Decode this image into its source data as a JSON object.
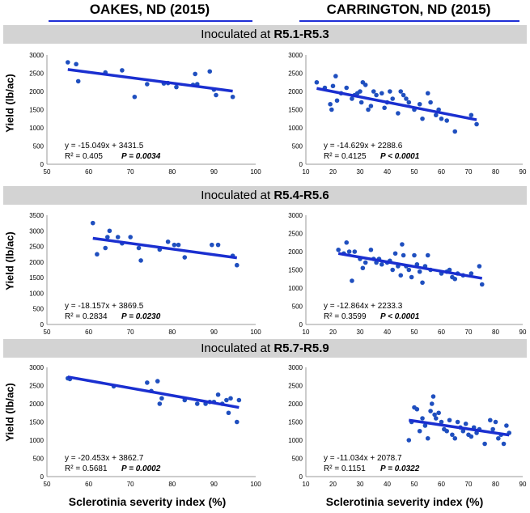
{
  "columns": [
    {
      "title": "OAKES, ND (2015)"
    },
    {
      "title": "CARRINGTON, ND (2015)"
    }
  ],
  "bands": [
    {
      "prefix": "Inoculated at ",
      "stage": "R5.1-R5.3"
    },
    {
      "prefix": "Inoculated at ",
      "stage": "R5.4-R5.6"
    },
    {
      "prefix": "Inoculated at ",
      "stage": "R5.7-R5.9"
    }
  ],
  "ylabel": "Yield (lb/ac)",
  "xlabel": "Sclerotinia severity index (%)",
  "colors": {
    "points": "#1f4fbf",
    "trend": "#1a2fd0",
    "band": "#d3d3d3",
    "underline": "#1f2fd6"
  },
  "chart_data": [
    {
      "type": "scatter",
      "id": "p1",
      "xlim": [
        50,
        100
      ],
      "xticks": [
        50,
        60,
        70,
        80,
        90,
        100
      ],
      "ylim": [
        0,
        3000
      ],
      "yticks": [
        0,
        500,
        1000,
        1500,
        2000,
        2500,
        3000
      ],
      "trend": {
        "slope": -15.049,
        "intercept": 3431.5
      },
      "equation": "y = -15.049x + 3431.5",
      "r2_label": "R² = 0.405",
      "p_label": "P = 0.0034",
      "points": [
        [
          55,
          2800
        ],
        [
          57,
          2750
        ],
        [
          57.5,
          2280
        ],
        [
          64,
          2520
        ],
        [
          68,
          2580
        ],
        [
          71,
          1850
        ],
        [
          74,
          2200
        ],
        [
          78,
          2220
        ],
        [
          79,
          2230
        ],
        [
          81,
          2120
        ],
        [
          85,
          2180
        ],
        [
          85.5,
          2480
        ],
        [
          86,
          2200
        ],
        [
          89,
          2550
        ],
        [
          90,
          2050
        ],
        [
          90.5,
          1900
        ],
        [
          94.5,
          1850
        ]
      ]
    },
    {
      "type": "scatter",
      "id": "p2",
      "xlim": [
        10,
        90
      ],
      "xticks": [
        10,
        20,
        30,
        40,
        50,
        60,
        70,
        80,
        90
      ],
      "ylim": [
        0,
        3000
      ],
      "yticks": [
        0,
        500,
        1000,
        1500,
        2000,
        2500,
        3000
      ],
      "trend": {
        "slope": -14.629,
        "intercept": 2288.6
      },
      "equation": "y = -14.629x + 2288.6",
      "r2_label": "R² = 0.4125",
      "p_label": "P < 0.0001",
      "points": [
        [
          14,
          2250
        ],
        [
          17,
          2100
        ],
        [
          19,
          1650
        ],
        [
          19.5,
          1500
        ],
        [
          20,
          2150
        ],
        [
          21,
          2420
        ],
        [
          21.5,
          1750
        ],
        [
          23,
          1950
        ],
        [
          25,
          2100
        ],
        [
          27,
          1800
        ],
        [
          28,
          1900
        ],
        [
          29,
          1950
        ],
        [
          30,
          2000
        ],
        [
          30.5,
          1700
        ],
        [
          31,
          2250
        ],
        [
          32,
          2180
        ],
        [
          33,
          1500
        ],
        [
          34,
          1600
        ],
        [
          35,
          2000
        ],
        [
          36,
          1900
        ],
        [
          38,
          1950
        ],
        [
          39,
          1550
        ],
        [
          40,
          1700
        ],
        [
          41,
          2000
        ],
        [
          42,
          1800
        ],
        [
          44,
          1400
        ],
        [
          45,
          2000
        ],
        [
          46,
          1900
        ],
        [
          47,
          1800
        ],
        [
          48,
          1700
        ],
        [
          50,
          1500
        ],
        [
          52,
          1650
        ],
        [
          53,
          1250
        ],
        [
          55,
          1950
        ],
        [
          56,
          1700
        ],
        [
          58,
          1350
        ],
        [
          59,
          1500
        ],
        [
          60,
          1250
        ],
        [
          62,
          1200
        ],
        [
          65,
          900
        ],
        [
          71,
          1350
        ],
        [
          73,
          1100
        ]
      ]
    },
    {
      "type": "scatter",
      "id": "p3",
      "xlim": [
        50,
        100
      ],
      "xticks": [
        50,
        60,
        70,
        80,
        90,
        100
      ],
      "ylim": [
        0,
        3500
      ],
      "yticks": [
        0,
        500,
        1000,
        1500,
        2000,
        2500,
        3000,
        3500
      ],
      "trend": {
        "slope": -18.157,
        "intercept": 3869.5
      },
      "equation": "y = -18.157x + 3869.5",
      "r2_label": "R² = 0.2834",
      "p_label": "P = 0.0230",
      "points": [
        [
          61,
          3250
        ],
        [
          62,
          2250
        ],
        [
          64,
          2450
        ],
        [
          64.5,
          2800
        ],
        [
          65,
          3000
        ],
        [
          67,
          2800
        ],
        [
          68,
          2600
        ],
        [
          70,
          2800
        ],
        [
          72,
          2450
        ],
        [
          72.5,
          2050
        ],
        [
          77,
          2400
        ],
        [
          79,
          2650
        ],
        [
          80.5,
          2550
        ],
        [
          81.5,
          2550
        ],
        [
          83,
          2150
        ],
        [
          89.5,
          2550
        ],
        [
          91,
          2550
        ],
        [
          94.5,
          2200
        ],
        [
          95.5,
          1900
        ]
      ]
    },
    {
      "type": "scatter",
      "id": "p4",
      "xlim": [
        10,
        90
      ],
      "xticks": [
        10,
        20,
        30,
        40,
        50,
        60,
        70,
        80,
        90
      ],
      "ylim": [
        0,
        3000
      ],
      "yticks": [
        0,
        500,
        1000,
        1500,
        2000,
        2500,
        3000
      ],
      "trend": {
        "slope": -12.864,
        "intercept": 2233.3
      },
      "equation": "y = -12.864x + 2233.3",
      "r2_label": "R² = 0.3599",
      "p_label": "P < 0.0001",
      "points": [
        [
          22,
          2050
        ],
        [
          24,
          1950
        ],
        [
          25,
          2250
        ],
        [
          26,
          2000
        ],
        [
          27,
          1200
        ],
        [
          28,
          2000
        ],
        [
          30,
          1800
        ],
        [
          31,
          1550
        ],
        [
          32,
          1700
        ],
        [
          34,
          2050
        ],
        [
          35,
          1800
        ],
        [
          36,
          1700
        ],
        [
          37,
          1800
        ],
        [
          38,
          1650
        ],
        [
          40,
          1700
        ],
        [
          41,
          1750
        ],
        [
          42,
          1500
        ],
        [
          43,
          1950
        ],
        [
          44,
          1600
        ],
        [
          45,
          1350
        ],
        [
          45.5,
          2200
        ],
        [
          46,
          1900
        ],
        [
          47,
          1600
        ],
        [
          48,
          1500
        ],
        [
          49,
          1300
        ],
        [
          50,
          1900
        ],
        [
          51,
          1650
        ],
        [
          52,
          1450
        ],
        [
          53,
          1150
        ],
        [
          54,
          1600
        ],
        [
          55,
          1900
        ],
        [
          56,
          1500
        ],
        [
          60,
          1400
        ],
        [
          62,
          1450
        ],
        [
          63,
          1500
        ],
        [
          64,
          1300
        ],
        [
          65,
          1250
        ],
        [
          66,
          1400
        ],
        [
          68,
          1350
        ],
        [
          71,
          1400
        ],
        [
          74,
          1600
        ],
        [
          75,
          1100
        ]
      ]
    },
    {
      "type": "scatter",
      "id": "p5",
      "xlim": [
        50,
        100
      ],
      "xticks": [
        50,
        60,
        70,
        80,
        90,
        100
      ],
      "ylim": [
        0,
        3000
      ],
      "yticks": [
        0,
        500,
        1000,
        1500,
        2000,
        2500,
        3000
      ],
      "trend": {
        "slope": -20.453,
        "intercept": 3862.7
      },
      "equation": "y = -20.453x + 3862.7",
      "r2_label": "R² = 0.5681",
      "p_label": "P = 0.0002",
      "points": [
        [
          55,
          2700
        ],
        [
          55.5,
          2680
        ],
        [
          66,
          2480
        ],
        [
          74,
          2580
        ],
        [
          75,
          2350
        ],
        [
          76.5,
          2620
        ],
        [
          77,
          2000
        ],
        [
          77.5,
          2150
        ],
        [
          83,
          2100
        ],
        [
          86,
          2000
        ],
        [
          88,
          2000
        ],
        [
          89,
          2050
        ],
        [
          90,
          2050
        ],
        [
          91,
          2250
        ],
        [
          92,
          2000
        ],
        [
          93,
          2100
        ],
        [
          93.5,
          1750
        ],
        [
          94,
          2150
        ],
        [
          95.5,
          1500
        ],
        [
          96,
          2100
        ]
      ]
    },
    {
      "type": "scatter",
      "id": "p6",
      "xlim": [
        10,
        90
      ],
      "xticks": [
        10,
        20,
        30,
        40,
        50,
        60,
        70,
        80,
        90
      ],
      "ylim": [
        0,
        3000
      ],
      "yticks": [
        0,
        500,
        1000,
        1500,
        2000,
        2500,
        3000
      ],
      "trend": {
        "slope": -11.034,
        "intercept": 2078.7
      },
      "equation": "y = -11.034x + 2078.7",
      "r2_label": "R² = 0.1151",
      "p_label": "P = 0.0322",
      "points": [
        [
          48,
          1000
        ],
        [
          49,
          1500
        ],
        [
          50,
          1900
        ],
        [
          51,
          1850
        ],
        [
          52,
          1250
        ],
        [
          53,
          1600
        ],
        [
          54,
          1400
        ],
        [
          55,
          1050
        ],
        [
          56,
          1800
        ],
        [
          56.5,
          2000
        ],
        [
          57,
          2200
        ],
        [
          57.5,
          1700
        ],
        [
          58,
          1600
        ],
        [
          59,
          1750
        ],
        [
          60,
          1500
        ],
        [
          61,
          1300
        ],
        [
          62,
          1250
        ],
        [
          63,
          1550
        ],
        [
          64,
          1150
        ],
        [
          65,
          1050
        ],
        [
          66,
          1500
        ],
        [
          67,
          1350
        ],
        [
          68,
          1250
        ],
        [
          69,
          1450
        ],
        [
          70,
          1150
        ],
        [
          71,
          1100
        ],
        [
          72,
          1350
        ],
        [
          73,
          1200
        ],
        [
          74,
          1300
        ],
        [
          76,
          900
        ],
        [
          78,
          1550
        ],
        [
          79,
          1300
        ],
        [
          80,
          1500
        ],
        [
          81,
          1050
        ],
        [
          82,
          1150
        ],
        [
          83,
          900
        ],
        [
          84,
          1400
        ],
        [
          85,
          1200
        ]
      ]
    }
  ]
}
